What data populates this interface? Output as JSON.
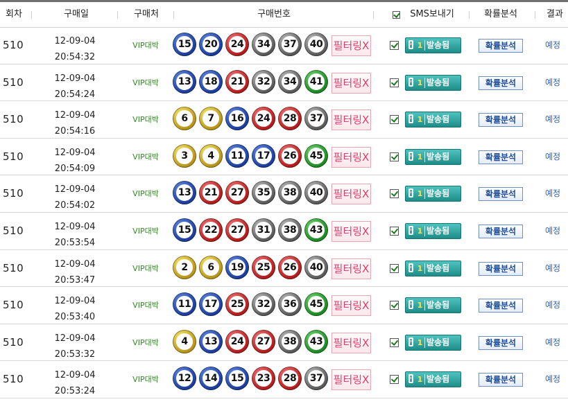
{
  "header": {
    "round": "회차",
    "date": "구매일",
    "store": "구매처",
    "numbers": "구매번호",
    "sms": "SMS보내기",
    "analysis": "확률분석",
    "result": "결과"
  },
  "rows": [
    {
      "round": "510",
      "date": "12-09-04",
      "time": "20:54:32",
      "store": "VIP대박",
      "balls": [
        15,
        20,
        24,
        34,
        37,
        40
      ],
      "filter": "필터링X",
      "sms_count": "1",
      "sms_label": "발송됨",
      "analysis": "확률분석",
      "result": "예정"
    },
    {
      "round": "510",
      "date": "12-09-04",
      "time": "20:54:24",
      "store": "VIP대박",
      "balls": [
        13,
        18,
        21,
        32,
        34,
        41
      ],
      "filter": "필터링X",
      "sms_count": "1",
      "sms_label": "발송됨",
      "analysis": "확률분석",
      "result": "예정"
    },
    {
      "round": "510",
      "date": "12-09-04",
      "time": "20:54:16",
      "store": "VIP대박",
      "balls": [
        6,
        7,
        16,
        24,
        28,
        37
      ],
      "filter": "필터링X",
      "sms_count": "1",
      "sms_label": "발송됨",
      "analysis": "확률분석",
      "result": "예정"
    },
    {
      "round": "510",
      "date": "12-09-04",
      "time": "20:54:09",
      "store": "VIP대박",
      "balls": [
        3,
        4,
        11,
        17,
        26,
        45
      ],
      "filter": "필터링X",
      "sms_count": "1",
      "sms_label": "발송됨",
      "analysis": "확률분석",
      "result": "예정"
    },
    {
      "round": "510",
      "date": "12-09-04",
      "time": "20:54:02",
      "store": "VIP대박",
      "balls": [
        13,
        21,
        27,
        35,
        38,
        40
      ],
      "filter": "필터링X",
      "sms_count": "1",
      "sms_label": "발송됨",
      "analysis": "확률분석",
      "result": "예정"
    },
    {
      "round": "510",
      "date": "12-09-04",
      "time": "20:53:54",
      "store": "VIP대박",
      "balls": [
        15,
        22,
        27,
        31,
        38,
        43
      ],
      "filter": "필터링X",
      "sms_count": "1",
      "sms_label": "발송됨",
      "analysis": "확률분석",
      "result": "예정"
    },
    {
      "round": "510",
      "date": "12-09-04",
      "time": "20:53:47",
      "store": "VIP대박",
      "balls": [
        2,
        6,
        19,
        25,
        26,
        40
      ],
      "filter": "필터링X",
      "sms_count": "1",
      "sms_label": "발송됨",
      "analysis": "확률분석",
      "result": "예정"
    },
    {
      "round": "510",
      "date": "12-09-04",
      "time": "20:53:40",
      "store": "VIP대박",
      "balls": [
        11,
        17,
        25,
        32,
        36,
        45
      ],
      "filter": "필터링X",
      "sms_count": "1",
      "sms_label": "발송됨",
      "analysis": "확률분석",
      "result": "예정"
    },
    {
      "round": "510",
      "date": "12-09-04",
      "time": "20:53:32",
      "store": "VIP대박",
      "balls": [
        4,
        13,
        24,
        27,
        38,
        43
      ],
      "filter": "필터링X",
      "sms_count": "1",
      "sms_label": "발송됨",
      "analysis": "확률분석",
      "result": "예정"
    },
    {
      "round": "510",
      "date": "12-09-04",
      "time": "20:53:24",
      "store": "VIP대박",
      "balls": [
        12,
        14,
        15,
        23,
        28,
        37
      ],
      "filter": "필터링X",
      "sms_count": "1",
      "sms_label": "발송됨",
      "analysis": "확률분석",
      "result": "예정"
    }
  ],
  "ball_colors": {
    "1-10": "#c9a227",
    "11-20": "#1f45b0",
    "21-30": "#c42424",
    "31-40": "#6a6a6a",
    "41-45": "#1f8a24"
  }
}
